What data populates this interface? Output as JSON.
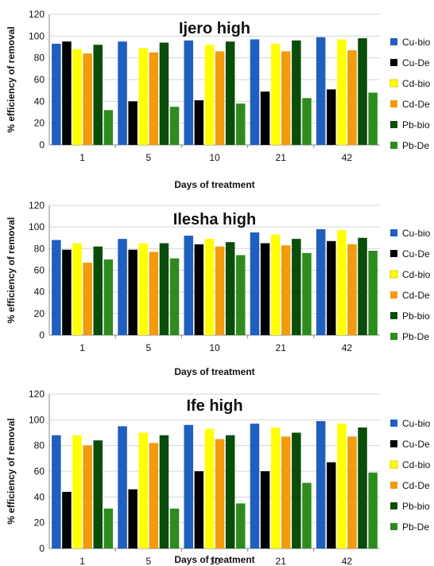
{
  "chart_data": [
    {
      "type": "bar",
      "title": "Ijero high",
      "xlabel": "Days of treatment",
      "ylabel": "% efficiency of removal",
      "ylim": [
        0,
        120
      ],
      "yticks": [
        0,
        20,
        40,
        60,
        80,
        100,
        120
      ],
      "grid": true,
      "legend_position": "right",
      "categories": [
        "1",
        "5",
        "10",
        "21",
        "42"
      ],
      "series": [
        {
          "name": "Cu-bio",
          "color": "#1f5fbf",
          "values": [
            93,
            95,
            96,
            97,
            99
          ]
        },
        {
          "name": "Cu-De",
          "color": "#000000",
          "values": [
            95,
            40,
            41,
            49,
            51
          ]
        },
        {
          "name": "Cd-bio",
          "color": "#ffff00",
          "values": [
            88,
            89,
            92,
            93,
            97
          ]
        },
        {
          "name": "Cd-De",
          "color": "#f29b0c",
          "values": [
            84,
            85,
            86,
            86,
            87
          ]
        },
        {
          "name": "Pb-bio",
          "color": "#0a4d0a",
          "values": [
            92,
            94,
            95,
            96,
            98
          ]
        },
        {
          "name": "Pb-De",
          "color": "#2e8b1f",
          "values": [
            32,
            35,
            38,
            43,
            48
          ]
        }
      ]
    },
    {
      "type": "bar",
      "title": "Ilesha high",
      "xlabel": "Days of treatment",
      "ylabel": "% efficiency of removal",
      "ylim": [
        0,
        120
      ],
      "yticks": [
        0,
        20,
        40,
        60,
        80,
        100,
        120
      ],
      "grid": true,
      "legend_position": "right",
      "categories": [
        "1",
        "5",
        "10",
        "21",
        "42"
      ],
      "series": [
        {
          "name": "Cu-bio",
          "color": "#1f5fbf",
          "values": [
            88,
            89,
            92,
            95,
            98
          ]
        },
        {
          "name": "Cu-De",
          "color": "#000000",
          "values": [
            79,
            79,
            84,
            85,
            87
          ]
        },
        {
          "name": "Cd-bio",
          "color": "#ffff00",
          "values": [
            85,
            85,
            89,
            93,
            97
          ]
        },
        {
          "name": "Cd-De",
          "color": "#f29b0c",
          "values": [
            67,
            77,
            82,
            83,
            84
          ]
        },
        {
          "name": "Pb-bio",
          "color": "#0a4d0a",
          "values": [
            82,
            85,
            86,
            89,
            90
          ]
        },
        {
          "name": "Pb-De",
          "color": "#2e8b1f",
          "values": [
            70,
            71,
            74,
            76,
            78
          ]
        }
      ]
    },
    {
      "type": "bar",
      "title": "Ife high",
      "xlabel": "Days of treatment",
      "ylabel": "% efficiency of removal",
      "ylim": [
        0,
        120
      ],
      "yticks": [
        0,
        20,
        40,
        60,
        80,
        100,
        120
      ],
      "grid": true,
      "legend_position": "right",
      "categories": [
        "1",
        "5",
        "10",
        "21",
        "42"
      ],
      "series": [
        {
          "name": "Cu-bio",
          "color": "#1f5fbf",
          "values": [
            88,
            95,
            96,
            97,
            99
          ]
        },
        {
          "name": "Cu-De",
          "color": "#000000",
          "values": [
            44,
            46,
            60,
            60,
            67
          ]
        },
        {
          "name": "Cd-bio",
          "color": "#ffff00",
          "values": [
            88,
            90,
            93,
            94,
            97
          ]
        },
        {
          "name": "Cd-De",
          "color": "#f29b0c",
          "values": [
            80,
            82,
            85,
            87,
            87
          ]
        },
        {
          "name": "Pb-bio",
          "color": "#0a4d0a",
          "values": [
            84,
            88,
            88,
            90,
            94
          ]
        },
        {
          "name": "Pb-De",
          "color": "#2e8b1f",
          "values": [
            31,
            31,
            35,
            51,
            59
          ]
        }
      ]
    }
  ]
}
